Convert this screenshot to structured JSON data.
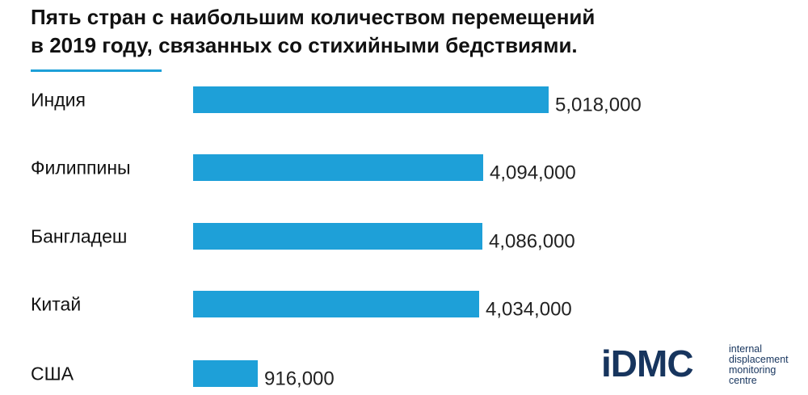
{
  "chart_data": {
    "type": "bar",
    "orientation": "horizontal",
    "title_lines": [
      "Пять стран с наибольшим количеством перемещений",
      "в 2019 году, связанных со стихийными бедствиями."
    ],
    "categories": [
      "Индия",
      "Филиппины",
      "Бангладеш",
      "Китай",
      "США"
    ],
    "values": [
      5018000,
      4094000,
      4086000,
      4034000,
      916000
    ],
    "value_labels": [
      "5,018,000",
      "4,094,000",
      "4,086,000",
      "4,034,000",
      "916,000"
    ],
    "xlim": [
      0,
      5018000
    ],
    "bar_color": "#1ea0d8",
    "grid": false,
    "legend": "none"
  },
  "logo": {
    "mark": "iDMC",
    "text_lines": [
      "internal",
      "displacement",
      "monitoring",
      "centre"
    ],
    "colors": {
      "dark": "#17355e",
      "accent": "#1ea0d8"
    }
  }
}
